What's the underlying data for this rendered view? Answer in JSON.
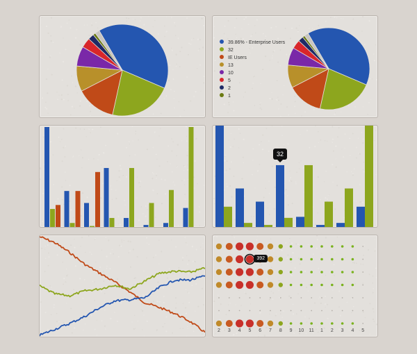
{
  "colors": {
    "blue": "#2456b0",
    "green": "#8da61e",
    "orange": "#c04a18",
    "gold": "#b8902a",
    "purple": "#7a28a8",
    "red": "#d8262b",
    "navy": "#1f2a66",
    "olive": "#6b7a12"
  },
  "chart_data": [
    {
      "type": "pie",
      "slices": [
        {
          "value": 39.86,
          "color": "#2456b0"
        },
        {
          "value": 22,
          "color": "#8da61e"
        },
        {
          "value": 14,
          "color": "#c04a18"
        },
        {
          "value": 9,
          "color": "#b8902a"
        },
        {
          "value": 7,
          "color": "#7a28a8"
        },
        {
          "value": 3.5,
          "color": "#d8262b"
        },
        {
          "value": 2.1,
          "color": "#1f2a66"
        },
        {
          "value": 0.9,
          "color": "#6b7a12"
        },
        {
          "value": 1.64,
          "color": "#c8c5c1"
        }
      ]
    },
    {
      "type": "pie",
      "legend": [
        "39.86% - Enterprise Users",
        "32",
        "IE Users",
        "13",
        "10",
        "5",
        "2",
        "1"
      ],
      "slices": [
        {
          "value": 39.86,
          "color": "#2456b0"
        },
        {
          "value": 22,
          "color": "#8da61e"
        },
        {
          "value": 14,
          "color": "#c04a18"
        },
        {
          "value": 9,
          "color": "#b8902a"
        },
        {
          "value": 7,
          "color": "#7a28a8"
        },
        {
          "value": 3.5,
          "color": "#d8262b"
        },
        {
          "value": 2.1,
          "color": "#1f2a66"
        },
        {
          "value": 0.9,
          "color": "#6b7a12"
        },
        {
          "value": 1.64,
          "color": "#c8c5c1"
        }
      ]
    },
    {
      "type": "bar",
      "ylim": [
        0,
        100
      ],
      "series": [
        {
          "color": "#2456b0",
          "values": [
            100,
            36,
            24,
            59,
            9,
            2,
            4,
            19
          ]
        },
        {
          "color": "#8da61e",
          "values": [
            18,
            4,
            1,
            9,
            59,
            24,
            37,
            100
          ]
        },
        {
          "color": "#c04a18",
          "values": [
            22,
            36,
            55,
            0,
            0,
            0,
            0,
            0
          ]
        }
      ]
    },
    {
      "type": "bar",
      "ylim": [
        0,
        100
      ],
      "tooltip": "32",
      "tooltip_group": 3,
      "series": [
        {
          "color": "#2456b0",
          "values": [
            100,
            38,
            25,
            61,
            10,
            2,
            4,
            20
          ]
        },
        {
          "color": "#8da61e",
          "values": [
            20,
            4,
            2,
            9,
            61,
            25,
            38,
            100
          ]
        }
      ]
    },
    {
      "type": "line",
      "ylim": [
        0,
        100
      ],
      "series": [
        {
          "color": "#c04a18",
          "values": [
            100,
            94,
            84,
            72,
            63,
            54,
            44,
            33,
            28,
            22,
            14,
            3
          ]
        },
        {
          "color": "#8da61e",
          "values": [
            50,
            42,
            40,
            45,
            47,
            51,
            47,
            55,
            63,
            65,
            64,
            68
          ]
        },
        {
          "color": "#2456b0",
          "values": [
            0,
            6,
            12,
            19,
            28,
            35,
            36,
            38,
            49,
            56,
            56,
            60
          ]
        }
      ]
    },
    {
      "type": "scatter",
      "tooltip": "392",
      "x_labels": [
        "2",
        "3",
        "4",
        "5",
        "6",
        "7",
        "8",
        "9",
        "10",
        "11",
        "1",
        "2",
        "3",
        "4",
        "5"
      ],
      "rows": [
        [
          3,
          4,
          5,
          5,
          4,
          3,
          2,
          1,
          1,
          1,
          1,
          1,
          1,
          1,
          0
        ],
        [
          3,
          4,
          5,
          5,
          4,
          3,
          2,
          1,
          1,
          1,
          1,
          1,
          1,
          1,
          0
        ],
        [
          3,
          4,
          5,
          5,
          4,
          3,
          2,
          1,
          1,
          1,
          1,
          1,
          1,
          1,
          0
        ],
        [
          3,
          4,
          5,
          5,
          4,
          3,
          2,
          1,
          1,
          1,
          1,
          1,
          1,
          1,
          0
        ],
        [
          0,
          0,
          0,
          0,
          0,
          0,
          0,
          0,
          0,
          0,
          0,
          0,
          0,
          0,
          0
        ],
        [
          0,
          0,
          0,
          0,
          0,
          0,
          0,
          0,
          0,
          0,
          0,
          0,
          0,
          0,
          0
        ],
        [
          3,
          4,
          5,
          5,
          4,
          3,
          2,
          1,
          1,
          1,
          1,
          1,
          1,
          1,
          0
        ]
      ]
    }
  ]
}
